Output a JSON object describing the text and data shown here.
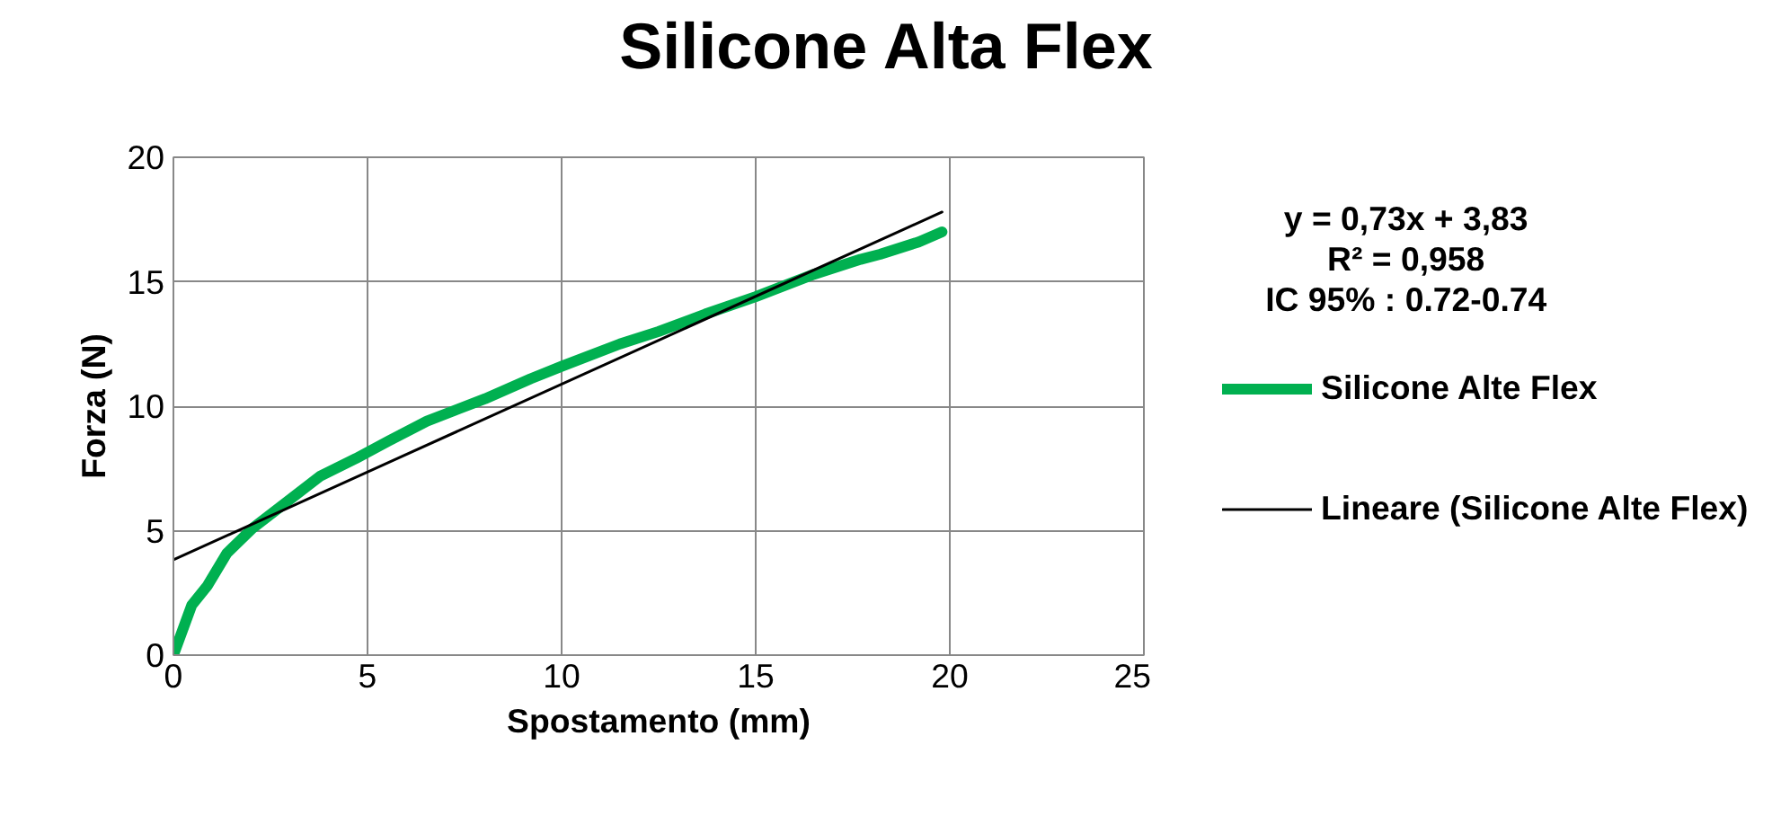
{
  "chart_data": {
    "type": "line",
    "title": "Silicone Alta Flex",
    "xlabel": "Spostamento (mm)",
    "ylabel": "Forza (N)",
    "xlim": [
      0,
      25
    ],
    "xticks": [
      0,
      5,
      10,
      15,
      20,
      25
    ],
    "ylim": [
      0,
      20
    ],
    "yticks": [
      0,
      5,
      10,
      15,
      20
    ],
    "grid": true,
    "legend": "right",
    "marker": "none",
    "annotations": [
      "y = 0,73x + 3,83",
      "R² = 0,958",
      "IC 95% : 0.72-0.74"
    ],
    "series": [
      {
        "name": "Silicone Alte Flex",
        "color": "#00b050",
        "x": [
          0,
          0.47,
          0.88,
          1.38,
          2.04,
          3.04,
          3.79,
          4.7,
          5.54,
          6.53,
          7.36,
          8.03,
          9.2,
          10.0,
          11.5,
          12.5,
          13.7,
          15.0,
          16.5,
          17.7,
          18.2,
          19.2,
          19.8
        ],
        "values": [
          0,
          2.0,
          2.8,
          4.1,
          5.1,
          6.3,
          7.2,
          7.9,
          8.6,
          9.4,
          9.9,
          10.3,
          11.1,
          11.6,
          12.5,
          13.0,
          13.7,
          14.4,
          15.3,
          15.9,
          16.1,
          16.6,
          17.0
        ]
      },
      {
        "name": "Lineare (Silicone Alte Flex)",
        "color": "#000000",
        "x": [
          0,
          19.8
        ],
        "values": [
          3.83,
          17.8
        ]
      }
    ]
  }
}
